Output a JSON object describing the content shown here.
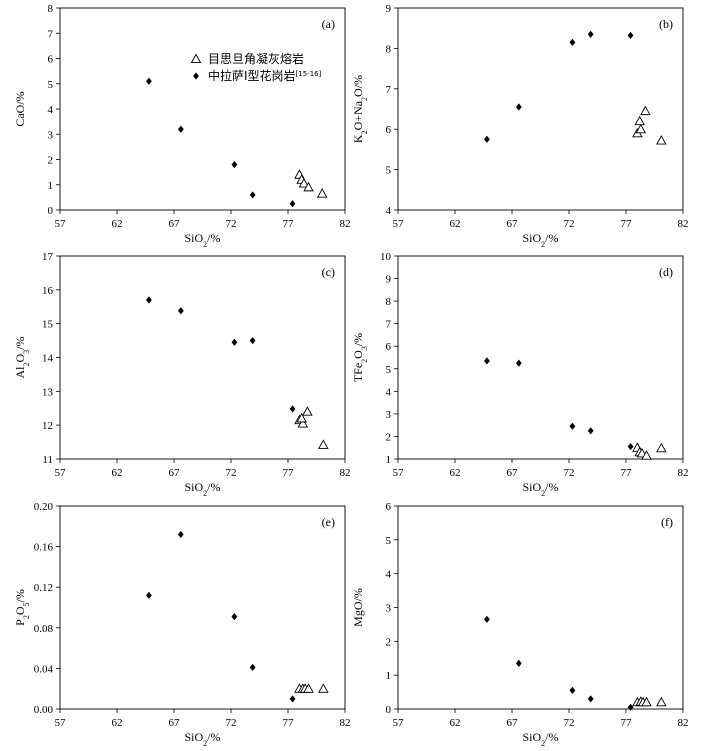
{
  "legend": {
    "items": [
      {
        "label": "目思旦角凝灰熔岩",
        "marker": "triangle-open"
      },
      {
        "label": "中拉萨I型花岗岩",
        "sup": "[15-16]",
        "marker": "diamond-filled"
      }
    ]
  },
  "chart_data": [
    {
      "type": "scatter",
      "panel_label": "(a)",
      "xlabel": {
        "main": "SiO",
        "sub": "2",
        "tail": "/%"
      },
      "ylabel": {
        "main": "CaO/%",
        "sub": "",
        "tail": ""
      },
      "xlim": [
        57,
        82
      ],
      "ylim": [
        0,
        8
      ],
      "xticks": [
        57,
        62,
        67,
        72,
        77,
        82
      ],
      "yticks": [
        0,
        1,
        2,
        3,
        4,
        5,
        6,
        7,
        8
      ],
      "ytick_decimals": 0,
      "legend_position": "top-right",
      "series": [
        {
          "name": "目思旦角凝灰熔岩",
          "marker": "triangle-open",
          "points": [
            [
              78.0,
              1.4
            ],
            [
              78.2,
              1.2
            ],
            [
              78.4,
              1.05
            ],
            [
              78.8,
              0.9
            ],
            [
              80.0,
              0.65
            ]
          ]
        },
        {
          "name": "中拉萨I型花岗岩",
          "marker": "diamond-filled",
          "points": [
            [
              64.8,
              5.1
            ],
            [
              67.6,
              3.2
            ],
            [
              72.3,
              1.8
            ],
            [
              73.9,
              0.6
            ],
            [
              77.4,
              0.25
            ]
          ]
        }
      ]
    },
    {
      "type": "scatter",
      "panel_label": "(b)",
      "xlabel": {
        "main": "SiO",
        "sub": "2",
        "tail": "/%"
      },
      "ylabel": {
        "main": "K",
        "sub": "2",
        "tail": "O+Na",
        "sub2": "2",
        "tail2": "O/%"
      },
      "xlim": [
        57,
        82
      ],
      "ylim": [
        4,
        9
      ],
      "xticks": [
        57,
        62,
        67,
        72,
        77,
        82
      ],
      "yticks": [
        4,
        5,
        6,
        7,
        8,
        9
      ],
      "ytick_decimals": 0,
      "series": [
        {
          "name": "目思旦角凝灰熔岩",
          "marker": "triangle-open",
          "points": [
            [
              78.0,
              5.9
            ],
            [
              78.3,
              6.0
            ],
            [
              78.2,
              6.2
            ],
            [
              78.7,
              6.45
            ],
            [
              80.1,
              5.72
            ]
          ]
        },
        {
          "name": "中拉萨I型花岗岩",
          "marker": "diamond-filled",
          "points": [
            [
              64.8,
              5.75
            ],
            [
              67.6,
              6.55
            ],
            [
              72.3,
              8.15
            ],
            [
              73.9,
              8.35
            ],
            [
              77.4,
              8.32
            ]
          ]
        }
      ]
    },
    {
      "type": "scatter",
      "panel_label": "(c)",
      "xlabel": {
        "main": "SiO",
        "sub": "2",
        "tail": "/%"
      },
      "ylabel": {
        "main": "Al",
        "sub": "2",
        "tail": "O",
        "sub2": "3",
        "tail2": "/%"
      },
      "xlim": [
        57,
        82
      ],
      "ylim": [
        11,
        17
      ],
      "xticks": [
        57,
        62,
        67,
        72,
        77,
        82
      ],
      "yticks": [
        11,
        12,
        13,
        14,
        15,
        16,
        17
      ],
      "ytick_decimals": 0,
      "series": [
        {
          "name": "目思旦角凝灰熔岩",
          "marker": "triangle-open",
          "points": [
            [
              78.0,
              12.15
            ],
            [
              78.3,
              12.05
            ],
            [
              78.2,
              12.2
            ],
            [
              78.7,
              12.4
            ],
            [
              80.1,
              11.42
            ]
          ]
        },
        {
          "name": "中拉萨I型花岗岩",
          "marker": "diamond-filled",
          "points": [
            [
              64.8,
              15.7
            ],
            [
              67.6,
              15.38
            ],
            [
              72.3,
              14.45
            ],
            [
              73.9,
              14.5
            ],
            [
              77.4,
              12.48
            ]
          ]
        }
      ]
    },
    {
      "type": "scatter",
      "panel_label": "(d)",
      "xlabel": {
        "main": "SiO",
        "sub": "2",
        "tail": "/%"
      },
      "ylabel": {
        "main": "TFe",
        "sub": "2",
        "tail": "O",
        "sub2": "3",
        "tail2": "/%"
      },
      "xlim": [
        57,
        82
      ],
      "ylim": [
        1,
        10
      ],
      "xticks": [
        57,
        62,
        67,
        72,
        77,
        82
      ],
      "yticks": [
        1,
        2,
        3,
        4,
        5,
        6,
        7,
        8,
        9,
        10
      ],
      "ytick_decimals": 0,
      "series": [
        {
          "name": "目思旦角凝灰熔岩",
          "marker": "triangle-open",
          "points": [
            [
              78.0,
              1.5
            ],
            [
              78.2,
              1.3
            ],
            [
              78.4,
              1.25
            ],
            [
              78.8,
              1.15
            ],
            [
              80.1,
              1.48
            ]
          ]
        },
        {
          "name": "中拉萨I型花岗岩",
          "marker": "diamond-filled",
          "points": [
            [
              64.8,
              5.35
            ],
            [
              67.6,
              5.25
            ],
            [
              72.3,
              2.45
            ],
            [
              73.9,
              2.25
            ],
            [
              77.4,
              1.55
            ]
          ]
        }
      ]
    },
    {
      "type": "scatter",
      "panel_label": "(e)",
      "xlabel": {
        "main": "SiO",
        "sub": "2",
        "tail": "/%"
      },
      "ylabel": {
        "main": "P",
        "sub": "2",
        "tail": "O",
        "sub2": "5",
        "tail2": "/%"
      },
      "xlim": [
        57,
        82
      ],
      "ylim": [
        0,
        0.2
      ],
      "xticks": [
        57,
        62,
        67,
        72,
        77,
        82
      ],
      "yticks": [
        0,
        0.04,
        0.08,
        0.12,
        0.16,
        0.2
      ],
      "ytick_decimals": 2,
      "series": [
        {
          "name": "目思旦角凝灰熔岩",
          "marker": "triangle-open",
          "points": [
            [
              78.0,
              0.02
            ],
            [
              78.3,
              0.02
            ],
            [
              78.5,
              0.02
            ],
            [
              78.8,
              0.02
            ],
            [
              80.1,
              0.02
            ]
          ]
        },
        {
          "name": "中拉萨I型花岗岩",
          "marker": "diamond-filled",
          "points": [
            [
              64.8,
              0.112
            ],
            [
              67.6,
              0.172
            ],
            [
              72.3,
              0.091
            ],
            [
              73.9,
              0.041
            ],
            [
              77.4,
              0.01
            ]
          ]
        }
      ]
    },
    {
      "type": "scatter",
      "panel_label": "(f)",
      "xlabel": {
        "main": "SiO",
        "sub": "2",
        "tail": "/%"
      },
      "ylabel": {
        "main": "MgO/%",
        "sub": "",
        "tail": ""
      },
      "xlim": [
        57,
        82
      ],
      "ylim": [
        0,
        6
      ],
      "xticks": [
        57,
        62,
        67,
        72,
        77,
        82
      ],
      "yticks": [
        0,
        1,
        2,
        3,
        4,
        5,
        6
      ],
      "ytick_decimals": 0,
      "series": [
        {
          "name": "目思旦角凝灰熔岩",
          "marker": "triangle-open",
          "points": [
            [
              78.0,
              0.2
            ],
            [
              78.3,
              0.22
            ],
            [
              78.5,
              0.2
            ],
            [
              78.8,
              0.2
            ],
            [
              80.1,
              0.2
            ]
          ]
        },
        {
          "name": "中拉萨I型花岗岩",
          "marker": "diamond-filled",
          "points": [
            [
              64.8,
              2.65
            ],
            [
              67.6,
              1.35
            ],
            [
              72.3,
              0.55
            ],
            [
              73.9,
              0.3
            ],
            [
              77.4,
              0.05
            ]
          ]
        }
      ]
    }
  ]
}
